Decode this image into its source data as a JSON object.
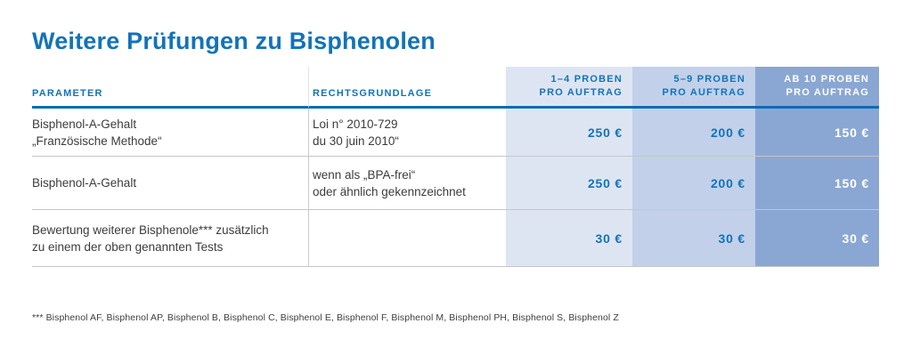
{
  "title": "Weitere Prüfungen zu Bisphenolen",
  "colors": {
    "accent_blue": "#1273b9",
    "header_rule_blue": "#0d6cb2",
    "column_bg_1_4": "#dee5f2",
    "column_bg_5_9": "#c2d1e9",
    "column_bg_ab_10": "#8aa7d3",
    "divider_gray": "#c6c6c6",
    "body_text": "#3c3c3c",
    "price_text_on_dark": "#ffffff"
  },
  "table": {
    "columns": [
      {
        "id": "parameter",
        "label": "PARAMETER"
      },
      {
        "id": "rechtsgrundlage",
        "label": "RECHTSGRUNDLAGE"
      },
      {
        "id": "proben_1_4",
        "label_line1": "1–4 PROBEN",
        "label_line2": "PRO AUFTRAG"
      },
      {
        "id": "proben_5_9",
        "label_line1": "5–9 PROBEN",
        "label_line2": "PRO AUFTRAG"
      },
      {
        "id": "proben_ab_10",
        "label_line1": "AB 10 PROBEN",
        "label_line2": "PRO AUFTRAG"
      }
    ],
    "rows": [
      {
        "parameter_line1": "Bisphenol-A-Gehalt",
        "parameter_line2": "„Französische Methode“",
        "legal_line1": "Loi n° 2010-729",
        "legal_line2": "du 30 juin 2010“",
        "price_1_4": "250 €",
        "price_5_9": "200 €",
        "price_ab_10": "150 €"
      },
      {
        "parameter_line1": "Bisphenol-A-Gehalt",
        "parameter_line2": "",
        "legal_line1": "wenn als „BPA-frei“",
        "legal_line2": "oder ähnlich gekennzeichnet",
        "price_1_4": "250 €",
        "price_5_9": "200 €",
        "price_ab_10": "150 €"
      },
      {
        "parameter_line1": "Bewertung weiterer Bisphenole*** zusätzlich",
        "parameter_line2": "zu einem der oben genannten Tests",
        "legal_line1": "",
        "legal_line2": "",
        "price_1_4": "30 €",
        "price_5_9": "30 €",
        "price_ab_10": "30 €"
      }
    ]
  },
  "footnote": "*** Bisphenol AF, Bisphenol AP, Bisphenol B, Bisphenol C, Bisphenol E, Bisphenol F, Bisphenol M, Bisphenol PH, Bisphenol S, Bisphenol Z"
}
